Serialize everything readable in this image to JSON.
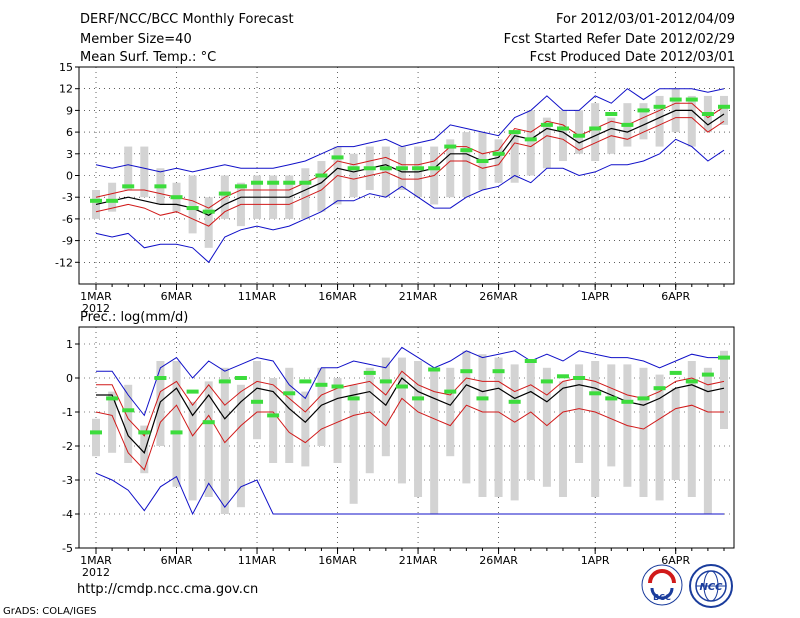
{
  "header": {
    "title": "DERF/NCC/BCC Monthly Forecast",
    "member_size": "Member Size=40",
    "variable": "Mean Surf. Temp.: °C",
    "period": "For 2012/03/01-2012/04/09",
    "started": "Fcst Started Refer Date 2012/02/29",
    "produced": "Fcst Produced Date 2012/03/01"
  },
  "footer": {
    "url": "http://cmdp.ncc.cma.gov.cn",
    "grads": "GrADS: COLA/IGES",
    "logo_bcc": "BCC",
    "logo_ncc": "NCC"
  },
  "colors": {
    "box": "#d3d3d3",
    "mean": "#000000",
    "spread": "#d11a1a",
    "extreme": "#1010c8",
    "obs": "#3cdc3c"
  },
  "chart_data": [
    {
      "type": "box",
      "title": "Mean Surf. Temp.: °C",
      "x": [
        1,
        2,
        3,
        4,
        5,
        6,
        7,
        8,
        9,
        10,
        11,
        12,
        13,
        14,
        15,
        16,
        17,
        18,
        19,
        20,
        21,
        22,
        23,
        24,
        25,
        26,
        27,
        28,
        29,
        30,
        31,
        32,
        33,
        34,
        35,
        36,
        37,
        38,
        39,
        40
      ],
      "xlabel_ticks": [
        {
          "x": 1,
          "label": "1MAR",
          "sub": "2012"
        },
        {
          "x": 6,
          "label": "6MAR"
        },
        {
          "x": 11,
          "label": "11MAR"
        },
        {
          "x": 16,
          "label": "16MAR"
        },
        {
          "x": 21,
          "label": "21MAR"
        },
        {
          "x": 26,
          "label": "26MAR"
        },
        {
          "x": 32,
          "label": "1APR"
        },
        {
          "x": 37,
          "label": "6APR"
        }
      ],
      "ylim": [
        -15,
        15
      ],
      "yticks": [
        -12,
        -9,
        -6,
        -3,
        0,
        3,
        6,
        9,
        12,
        15
      ],
      "ytick_labels": [
        "-12",
        "-9",
        "-6",
        "-3",
        "0",
        "3",
        "6",
        "9",
        "12",
        "15"
      ],
      "box_low": [
        -6,
        -5,
        -2,
        -3,
        -4,
        -5,
        -8,
        -10,
        -6,
        -7,
        -6,
        -6,
        -6,
        -6,
        -5,
        -4,
        -3,
        -2,
        -3,
        -2,
        -3,
        -4,
        -3,
        -3,
        -2,
        -1,
        -1,
        0,
        1,
        2,
        3,
        2,
        3,
        4,
        5,
        4,
        6,
        4,
        6,
        7
      ],
      "box_high": [
        -2,
        -1,
        4,
        4,
        1,
        -1,
        0,
        -3,
        0,
        -1,
        0,
        0,
        0,
        1,
        2,
        4,
        3,
        4,
        4,
        4,
        4,
        4,
        5,
        6,
        6,
        5,
        6,
        9,
        8,
        9,
        9,
        10,
        8,
        10,
        10,
        11,
        12,
        11,
        11,
        11
      ],
      "mean": [
        -4,
        -3.5,
        -3,
        -3.5,
        -4,
        -4,
        -4.5,
        -5.5,
        -4,
        -3,
        -3,
        -3,
        -3,
        -2,
        -1,
        1,
        0.5,
        1,
        1.5,
        0.5,
        0.5,
        1,
        3,
        3,
        2,
        2.5,
        5.5,
        5,
        6.5,
        6,
        4.5,
        5.5,
        6.5,
        6,
        7,
        8,
        9,
        9,
        7,
        8.5
      ],
      "upper": [
        -3,
        -2.5,
        -2,
        -2,
        -2.5,
        -3,
        -3.5,
        -4.5,
        -3,
        -2,
        -2,
        -2,
        -2,
        -1,
        0,
        2,
        1.5,
        2,
        2.5,
        1.5,
        1.5,
        2,
        4,
        4,
        3,
        3.5,
        6.5,
        6,
        7.5,
        7,
        5.5,
        6.5,
        7.5,
        7,
        8,
        9,
        10,
        10,
        8,
        9.5
      ],
      "lower": [
        -5,
        -4.5,
        -4,
        -4.5,
        -5.5,
        -5,
        -6,
        -7,
        -5,
        -4,
        -4,
        -4,
        -4,
        -3,
        -2,
        0,
        -0.5,
        0,
        0.5,
        -0.5,
        -0.5,
        0,
        2,
        2,
        1,
        1.5,
        4.5,
        4,
        5.5,
        5,
        3.5,
        4.5,
        5.5,
        5,
        6,
        7,
        8,
        8,
        6,
        7.5
      ],
      "max": [
        1.5,
        1,
        1.5,
        1,
        0.5,
        1,
        0.5,
        1,
        1.5,
        1,
        1,
        1,
        1.5,
        2,
        3,
        4,
        4,
        4.5,
        5,
        4,
        4.5,
        5,
        7,
        6.5,
        6,
        5.5,
        8,
        9,
        11,
        9,
        9,
        11,
        10,
        12,
        10.5,
        12,
        12,
        12,
        11.5,
        12
      ],
      "min": [
        -8,
        -8.5,
        -8,
        -10,
        -9.5,
        -9.5,
        -10,
        -12,
        -8.5,
        -7.5,
        -7,
        -7.5,
        -7,
        -6,
        -5,
        -3.5,
        -3.5,
        -2.5,
        -3,
        -1.5,
        -3,
        -4.5,
        -4.5,
        -3,
        -2,
        -1.5,
        0,
        -1,
        1,
        1,
        0,
        0.5,
        1.5,
        1.5,
        2,
        3,
        5,
        4,
        2,
        3.5
      ],
      "obs": [
        -3.5,
        -3.5,
        -1.5,
        null,
        -1.5,
        -3,
        -4.5,
        -5,
        -2.5,
        -1.5,
        -1,
        -1,
        -1,
        -1,
        0,
        2.5,
        1,
        1,
        1,
        1,
        1,
        1,
        4,
        3.5,
        2,
        3,
        6,
        5,
        7,
        6.5,
        5.5,
        6.5,
        8.5,
        7,
        9,
        9.5,
        10.5,
        10.5,
        8.5,
        9.5
      ]
    },
    {
      "type": "box",
      "title": "Prec.: log(mm/d)",
      "x": [
        1,
        2,
        3,
        4,
        5,
        6,
        7,
        8,
        9,
        10,
        11,
        12,
        13,
        14,
        15,
        16,
        17,
        18,
        19,
        20,
        21,
        22,
        23,
        24,
        25,
        26,
        27,
        28,
        29,
        30,
        31,
        32,
        33,
        34,
        35,
        36,
        37,
        38,
        39,
        40
      ],
      "xlabel_ticks": [
        {
          "x": 1,
          "label": "1MAR",
          "sub": "2012"
        },
        {
          "x": 6,
          "label": "6MAR"
        },
        {
          "x": 11,
          "label": "11MAR"
        },
        {
          "x": 16,
          "label": "16MAR"
        },
        {
          "x": 21,
          "label": "21MAR"
        },
        {
          "x": 26,
          "label": "26MAR"
        },
        {
          "x": 32,
          "label": "1APR"
        },
        {
          "x": 37,
          "label": "6APR"
        }
      ],
      "ylim": [
        -5,
        1.5
      ],
      "yticks": [
        -5,
        -4,
        -3,
        -2,
        -1,
        0,
        1
      ],
      "ytick_labels": [
        "-5",
        "-4",
        "-3",
        "-2",
        "-1",
        "0",
        "1"
      ],
      "box_low": [
        -2.3,
        -2.2,
        -2.5,
        -2.8,
        -2,
        -3.2,
        -3.6,
        -3.5,
        -4,
        -3.8,
        -1.8,
        -2.5,
        -2.5,
        -2.6,
        -2,
        -2.5,
        -3.7,
        -2.8,
        -2.3,
        -3.1,
        -3.5,
        -4,
        -2.3,
        -3.1,
        -3.5,
        -3.5,
        -3.6,
        -3,
        -3.2,
        -3.5,
        -2.5,
        -3.5,
        -2.6,
        -3.2,
        -3.5,
        -3.6,
        -3,
        -3.5,
        -4,
        -1.5
      ],
      "box_high": [
        -1.2,
        -0.4,
        -0.2,
        -1.4,
        0.5,
        0.5,
        -0.7,
        -0.1,
        0.3,
        -0.2,
        0.5,
        0,
        0.3,
        -0.4,
        0.3,
        0,
        -0.2,
        0.3,
        0.6,
        0.6,
        0.5,
        0.3,
        0.3,
        0.8,
        0.7,
        0.6,
        0.4,
        0.5,
        0.3,
        -0.1,
        0.4,
        0.5,
        0.4,
        0.4,
        0.3,
        0.1,
        -0.3,
        0.5,
        0.3,
        0.8
      ],
      "mean": [
        -0.5,
        -0.5,
        -1.7,
        -2.2,
        -0.7,
        -0.3,
        -1.1,
        -0.5,
        -1.2,
        -0.7,
        -0.3,
        -0.4,
        -0.9,
        -1.3,
        -0.8,
        -0.6,
        -0.5,
        -0.4,
        -0.8,
        0,
        -0.4,
        -0.6,
        -0.8,
        -0.2,
        -0.4,
        -0.3,
        -0.6,
        -0.4,
        -0.7,
        -0.3,
        -0.2,
        -0.3,
        -0.5,
        -0.7,
        -0.8,
        -0.6,
        -0.3,
        -0.2,
        -0.4,
        -0.3
      ],
      "upper": [
        -0.2,
        -0.2,
        -1.2,
        -1.7,
        -0.4,
        -0.1,
        -0.8,
        -0.2,
        -0.8,
        -0.4,
        -0.1,
        -0.2,
        -0.6,
        -1,
        -0.5,
        -0.3,
        -0.2,
        -0.1,
        -0.5,
        0.2,
        -0.2,
        -0.4,
        -0.5,
        0,
        -0.1,
        -0.1,
        -0.4,
        -0.2,
        -0.5,
        -0.1,
        0,
        -0.1,
        -0.3,
        -0.5,
        -0.6,
        -0.4,
        -0.1,
        0,
        -0.2,
        -0.1
      ],
      "lower": [
        -1,
        -1.1,
        -2.2,
        -2.7,
        -1.3,
        -0.8,
        -1.7,
        -1.1,
        -1.9,
        -1.4,
        -1,
        -1,
        -1.6,
        -1.9,
        -1.5,
        -1.3,
        -1.1,
        -1,
        -1.4,
        -0.6,
        -1,
        -1.2,
        -1.4,
        -0.8,
        -1,
        -1,
        -1.3,
        -1,
        -1.4,
        -1,
        -0.9,
        -1,
        -1.2,
        -1.4,
        -1.5,
        -1.2,
        -0.9,
        -0.8,
        -1,
        -1
      ],
      "max": [
        0.2,
        0.2,
        -0.5,
        -1.1,
        0.3,
        0.6,
        0,
        0.5,
        0.2,
        0.4,
        0.6,
        0.5,
        -0.2,
        -0.6,
        0.3,
        0.3,
        0.5,
        0.4,
        0.3,
        0.9,
        0.6,
        0.3,
        0.5,
        0.8,
        0.6,
        0.7,
        0.8,
        0.5,
        0.7,
        0.5,
        0.8,
        0.7,
        0.6,
        0.6,
        0.5,
        0.3,
        0.5,
        0.7,
        0.6,
        0.6
      ],
      "min": [
        -2.8,
        -3,
        -3.3,
        -3.9,
        -3.2,
        -2.9,
        -4,
        -3.1,
        -3.8,
        -3.2,
        -3,
        -4,
        -4,
        -4,
        -4,
        -4,
        -4,
        -4,
        -4,
        -4,
        -4,
        -4,
        -4,
        -4,
        -4,
        -4,
        -4,
        -4,
        -4,
        -4,
        -4,
        -4,
        -4,
        -4,
        -4,
        -4,
        -4,
        -4,
        -4,
        -4
      ],
      "obs": [
        -1.6,
        -0.6,
        -0.95,
        -1.6,
        0,
        -1.6,
        -0.4,
        -1.3,
        -0.1,
        0,
        -0.7,
        -1.1,
        -0.45,
        -0.1,
        -0.2,
        -0.25,
        -0.6,
        0.15,
        -0.1,
        -0.25,
        -0.6,
        0.25,
        -0.4,
        0.2,
        -0.6,
        0.2,
        -0.7,
        0.5,
        -0.1,
        0.05,
        0,
        -0.45,
        -0.6,
        -0.7,
        -0.6,
        -0.3,
        0.15,
        -0.1,
        0.1,
        0.6
      ]
    }
  ]
}
